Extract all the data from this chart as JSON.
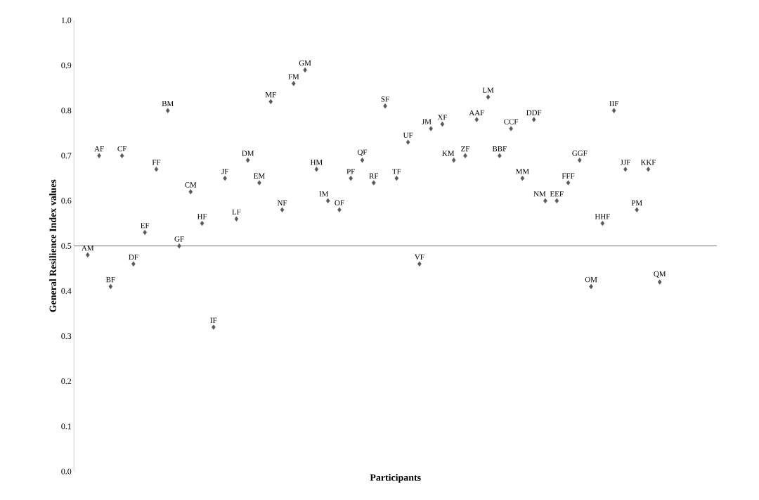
{
  "chart_data": {
    "type": "scatter",
    "xlabel": "Participants",
    "ylabel": "General Resilience Index values",
    "categories": [
      "AM",
      "AF",
      "BF",
      "CF",
      "DF",
      "EF",
      "FF",
      "BM",
      "GF",
      "CM",
      "HF",
      "IF",
      "JF",
      "LF",
      "DM",
      "EM",
      "MF",
      "NF",
      "FM",
      "GM",
      "HM",
      "IM",
      "OF",
      "PF",
      "QF",
      "RF",
      "SF",
      "TF",
      "UF",
      "VF",
      "JM",
      "XF",
      "KM",
      "ZF",
      "AAF",
      "LM",
      "BBF",
      "CCF",
      "MM",
      "DDF",
      "NM",
      "EEF",
      "FFF",
      "GGF",
      "OM",
      "HHF",
      "IIF",
      "JJF",
      "PM",
      "KKF",
      "QM"
    ],
    "values": [
      0.48,
      0.7,
      0.41,
      0.7,
      0.46,
      0.53,
      0.67,
      0.8,
      0.5,
      0.62,
      0.55,
      0.32,
      0.65,
      0.56,
      0.69,
      0.64,
      0.82,
      0.58,
      0.86,
      0.89,
      0.67,
      0.6,
      0.58,
      0.65,
      0.69,
      0.64,
      0.81,
      0.65,
      0.73,
      0.46,
      0.76,
      0.77,
      0.69,
      0.7,
      0.78,
      0.83,
      0.7,
      0.76,
      0.65,
      0.78,
      0.6,
      0.6,
      0.64,
      0.69,
      0.41,
      0.55,
      0.8,
      0.67,
      0.58,
      0.67,
      0.42
    ],
    "color": "#595959",
    "marker": "diamond",
    "ylim": [
      0,
      1
    ],
    "yticks": [
      {
        "value": 0,
        "label": "0.0"
      },
      {
        "value": 0.1,
        "label": "0.1"
      },
      {
        "value": 0.2,
        "label": "0.2"
      },
      {
        "value": 0.3,
        "label": "0.3"
      },
      {
        "value": 0.4,
        "label": "0.4"
      },
      {
        "value": 0.5,
        "label": "0.5"
      },
      {
        "value": 0.6,
        "label": "0.6"
      },
      {
        "value": 0.7,
        "label": "0.7"
      },
      {
        "value": 0.8,
        "label": "0.8"
      },
      {
        "value": 0.9,
        "label": "0.9"
      },
      {
        "value": 1,
        "label": "1.0"
      }
    ],
    "tick_labels": "y",
    "ref_lines": [
      {
        "axis": "y",
        "value": 0.5,
        "color": "#7f7f7f"
      }
    ]
  }
}
